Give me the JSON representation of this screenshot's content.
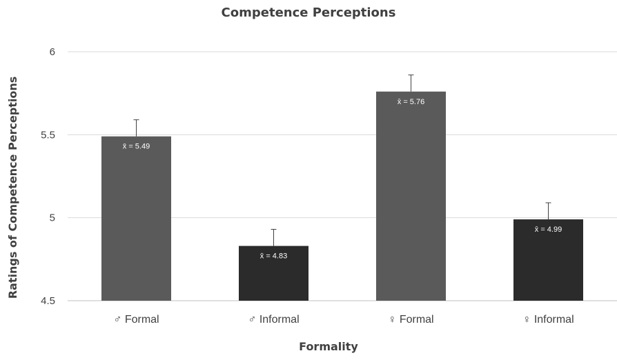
{
  "chart_data": {
    "type": "bar",
    "title": "Competence Perceptions",
    "xlabel": "Formality",
    "ylabel": "Ratings of Competence Perceptions",
    "ylim": [
      4.5,
      6
    ],
    "yticks": [
      "4.5",
      "5",
      "5.5",
      "6"
    ],
    "categories": [
      "♂ Formal",
      "♂ Informal",
      "♀ Formal",
      "♀ Informal"
    ],
    "values": [
      5.49,
      4.83,
      5.76,
      4.99
    ],
    "error": [
      0.1,
      0.1,
      0.1,
      0.1
    ],
    "data_labels": [
      "x̄ = 5.49",
      "x̄ = 4.83",
      "x̄ = 5.76",
      "x̄ = 4.99"
    ],
    "bar_colors": [
      "#5a5a5a",
      "#2b2b2b",
      "#5a5a5a",
      "#2b2b2b"
    ],
    "grid": true,
    "legend": "none"
  }
}
